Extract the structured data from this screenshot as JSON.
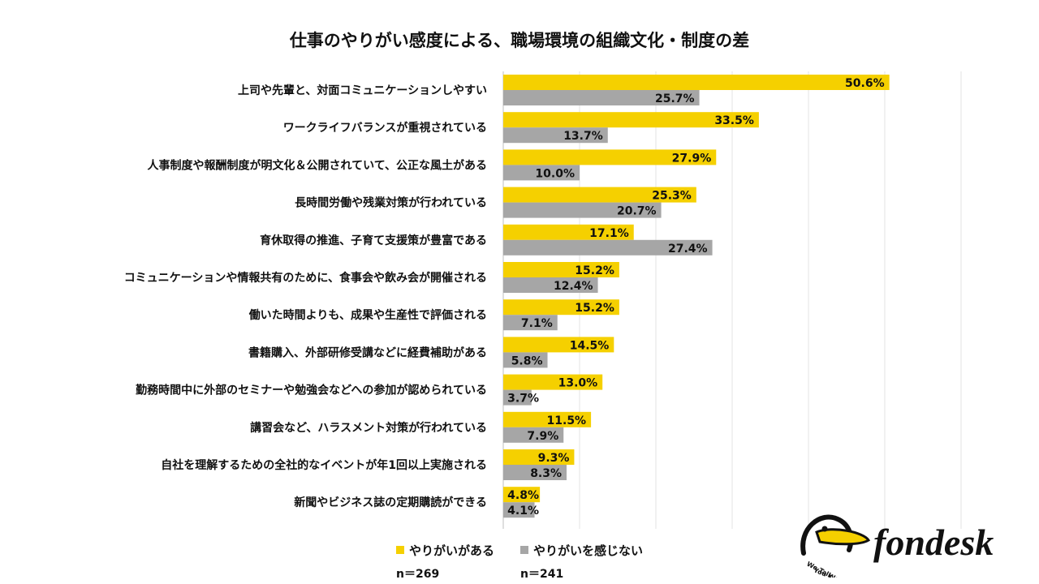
{
  "chart_data": {
    "type": "bar",
    "orientation": "horizontal",
    "title": "仕事のやりがい感度による、職場環境の組織文化・制度の差",
    "categories": [
      "上司や先輩と、対面コミュニケーションしやすい",
      "ワークライフバランスが重視されている",
      "人事制度や報酬制度が明文化＆公開されていて、公正な風土がある",
      "長時間労働や残業対策が行われている",
      "育休取得の推進、子育て支援策が豊富である",
      "コミュニケーションや情報共有のために、食事会や飲み会が開催される",
      "働いた時間よりも、成果や生産性で評価される",
      "書籍購入、外部研修受講などに経費補助がある",
      "勤務時間中に外部のセミナーや勉強会などへの参加が認められている",
      "講習会など、ハラスメント対策が行われている",
      "自社を理解するための全社的なイベントが年1回以上実施される",
      "新聞やビジネス誌の定期購読ができる"
    ],
    "series": [
      {
        "name": "やりがいがある",
        "n_label": "n＝269",
        "color": "#F5D000",
        "values": [
          50.6,
          33.5,
          27.9,
          25.3,
          17.1,
          15.2,
          15.2,
          14.5,
          13.0,
          11.5,
          9.3,
          4.8
        ]
      },
      {
        "name": "やりがいを感じない",
        "n_label": "n＝241",
        "color": "#A6A6A6",
        "values": [
          25.7,
          13.7,
          10.0,
          20.7,
          27.4,
          12.4,
          7.1,
          5.8,
          3.7,
          7.9,
          8.3,
          4.1
        ]
      }
    ],
    "xlim": [
      0,
      60
    ],
    "gridlines": true,
    "value_suffix": "%",
    "legend_position": "bottom"
  },
  "logo": {
    "brand": "fondesk",
    "tagline_1": "We Talk,",
    "tagline_2": "You Work."
  }
}
